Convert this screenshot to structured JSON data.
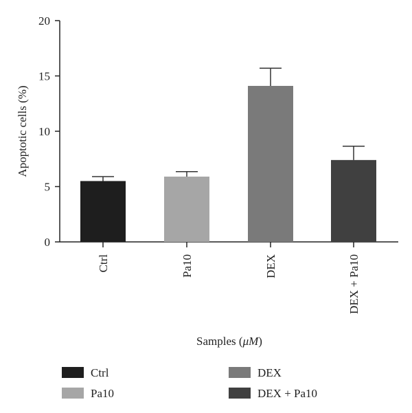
{
  "chart_data": {
    "type": "bar",
    "xlabel_main": "Samples (",
    "xlabel_unit": "μM",
    "xlabel_end": ")",
    "ylabel": "Apoptotic cells (%)",
    "ylim": [
      0,
      20
    ],
    "yticks": [
      "0",
      "5",
      "10",
      "15",
      "20"
    ],
    "categories": [
      "Ctrl",
      "Pa10",
      "DEX",
      "DEX + Pa10"
    ],
    "values": [
      5.5,
      5.9,
      14.1,
      7.4
    ],
    "errors": [
      0.4,
      0.45,
      1.6,
      1.25
    ],
    "colors": [
      "#1e1e1e",
      "#a6a6a6",
      "#7a7a7a",
      "#404040"
    ],
    "legend": [
      {
        "label": "Ctrl",
        "color": "#1e1e1e"
      },
      {
        "label": "DEX",
        "color": "#7a7a7a"
      },
      {
        "label": "Pa10",
        "color": "#a6a6a6"
      },
      {
        "label": "DEX + Pa10",
        "color": "#404040"
      }
    ],
    "legend_position": "bottom",
    "grid": false
  }
}
